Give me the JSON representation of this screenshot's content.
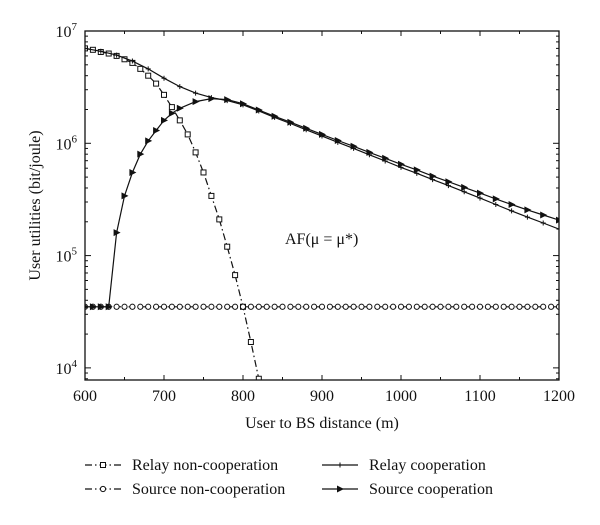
{
  "chart_data": {
    "type": "line",
    "xlabel": "User to BS distance (m)",
    "ylabel": "User utilities (bit/joule)",
    "annotation": "AF(μ = μ*)",
    "xlim": [
      600,
      1200
    ],
    "ylim": [
      7800,
      10000000
    ],
    "yscale": "log",
    "grid": false,
    "legend_placement": "bottom",
    "x_ticks": [
      600,
      700,
      800,
      900,
      1000,
      1100,
      1200
    ],
    "y_ticks": [
      {
        "base": "10",
        "exp": "4",
        "value": 10000
      },
      {
        "base": "10",
        "exp": "5",
        "value": 100000
      },
      {
        "base": "10",
        "exp": "6",
        "value": 1000000
      },
      {
        "base": "10",
        "exp": "7",
        "value": 10000000
      }
    ],
    "series": [
      {
        "name": "Relay non-cooperation",
        "style": "dash-dot",
        "marker": "square",
        "x": [
          600,
          610,
          620,
          630,
          640,
          650,
          660,
          670,
          680,
          690,
          700,
          710,
          720,
          730,
          740,
          750,
          760,
          770,
          780,
          790,
          800,
          810,
          820
        ],
        "y": [
          7000000,
          6800000,
          6500000,
          6300000,
          6000000,
          5600000,
          5200000,
          4600000,
          4000000,
          3400000,
          2700000,
          2100000,
          1600000,
          1200000,
          830000,
          550000,
          340000,
          210000,
          120000,
          67000,
          35000,
          17000,
          8000
        ]
      },
      {
        "name": "Source non-cooperation",
        "style": "dash-dot",
        "marker": "circle",
        "x": [
          600,
          610,
          620,
          630,
          640,
          650,
          660,
          670,
          680,
          690,
          700,
          710,
          720,
          730,
          740,
          750,
          760,
          770,
          780,
          790,
          800,
          810,
          820,
          830,
          840,
          850,
          860,
          870,
          880,
          890,
          900,
          910,
          920,
          930,
          940,
          950,
          960,
          970,
          980,
          990,
          1000,
          1010,
          1020,
          1030,
          1040,
          1050,
          1060,
          1070,
          1080,
          1090,
          1100,
          1110,
          1120,
          1130,
          1140,
          1150,
          1160,
          1170,
          1180,
          1190,
          1200
        ],
        "y": [
          35000,
          35000,
          35000,
          35000,
          35000,
          35000,
          35000,
          35000,
          35000,
          35000,
          35000,
          35000,
          35000,
          35000,
          35000,
          35000,
          35000,
          35000,
          35000,
          35000,
          35000,
          35000,
          35000,
          35000,
          35000,
          35000,
          35000,
          35000,
          35000,
          35000,
          35000,
          35000,
          35000,
          35000,
          35000,
          35000,
          35000,
          35000,
          35000,
          35000,
          35000,
          35000,
          35000,
          35000,
          35000,
          35000,
          35000,
          35000,
          35000,
          35000,
          35000,
          35000,
          35000,
          35000,
          35000,
          35000,
          35000,
          35000,
          35000,
          35000,
          35000
        ]
      },
      {
        "name": "Relay cooperation",
        "style": "solid",
        "marker": "plus",
        "x": [
          600,
          620,
          640,
          660,
          680,
          700,
          720,
          740,
          760,
          780,
          800,
          820,
          840,
          860,
          880,
          900,
          920,
          940,
          960,
          980,
          1000,
          1020,
          1040,
          1060,
          1080,
          1100,
          1120,
          1140,
          1160,
          1180,
          1200
        ],
        "y": [
          7000000,
          6600000,
          6100000,
          5400000,
          4600000,
          3800000,
          3200000,
          2800000,
          2550000,
          2400000,
          2200000,
          1940000,
          1700000,
          1500000,
          1320000,
          1160000,
          1020000,
          900000,
          790000,
          695000,
          610000,
          540000,
          475000,
          420000,
          370000,
          325000,
          285000,
          250000,
          220000,
          195000,
          172000
        ]
      },
      {
        "name": "Source cooperation",
        "style": "solid",
        "marker": "triangle",
        "x": [
          600,
          610,
          620,
          630,
          640,
          650,
          660,
          670,
          680,
          690,
          700,
          710,
          720,
          740,
          760,
          780,
          800,
          820,
          840,
          860,
          880,
          900,
          920,
          940,
          960,
          980,
          1000,
          1020,
          1040,
          1060,
          1080,
          1100,
          1120,
          1140,
          1160,
          1180,
          1200
        ],
        "y": [
          35000,
          35000,
          35000,
          35000,
          160000,
          340000,
          550000,
          800000,
          1050000,
          1300000,
          1600000,
          1850000,
          2050000,
          2350000,
          2500000,
          2450000,
          2250000,
          1980000,
          1740000,
          1540000,
          1360000,
          1200000,
          1060000,
          940000,
          830000,
          735000,
          650000,
          580000,
          510000,
          455000,
          405000,
          360000,
          320000,
          285000,
          255000,
          230000,
          207000
        ]
      }
    ]
  }
}
